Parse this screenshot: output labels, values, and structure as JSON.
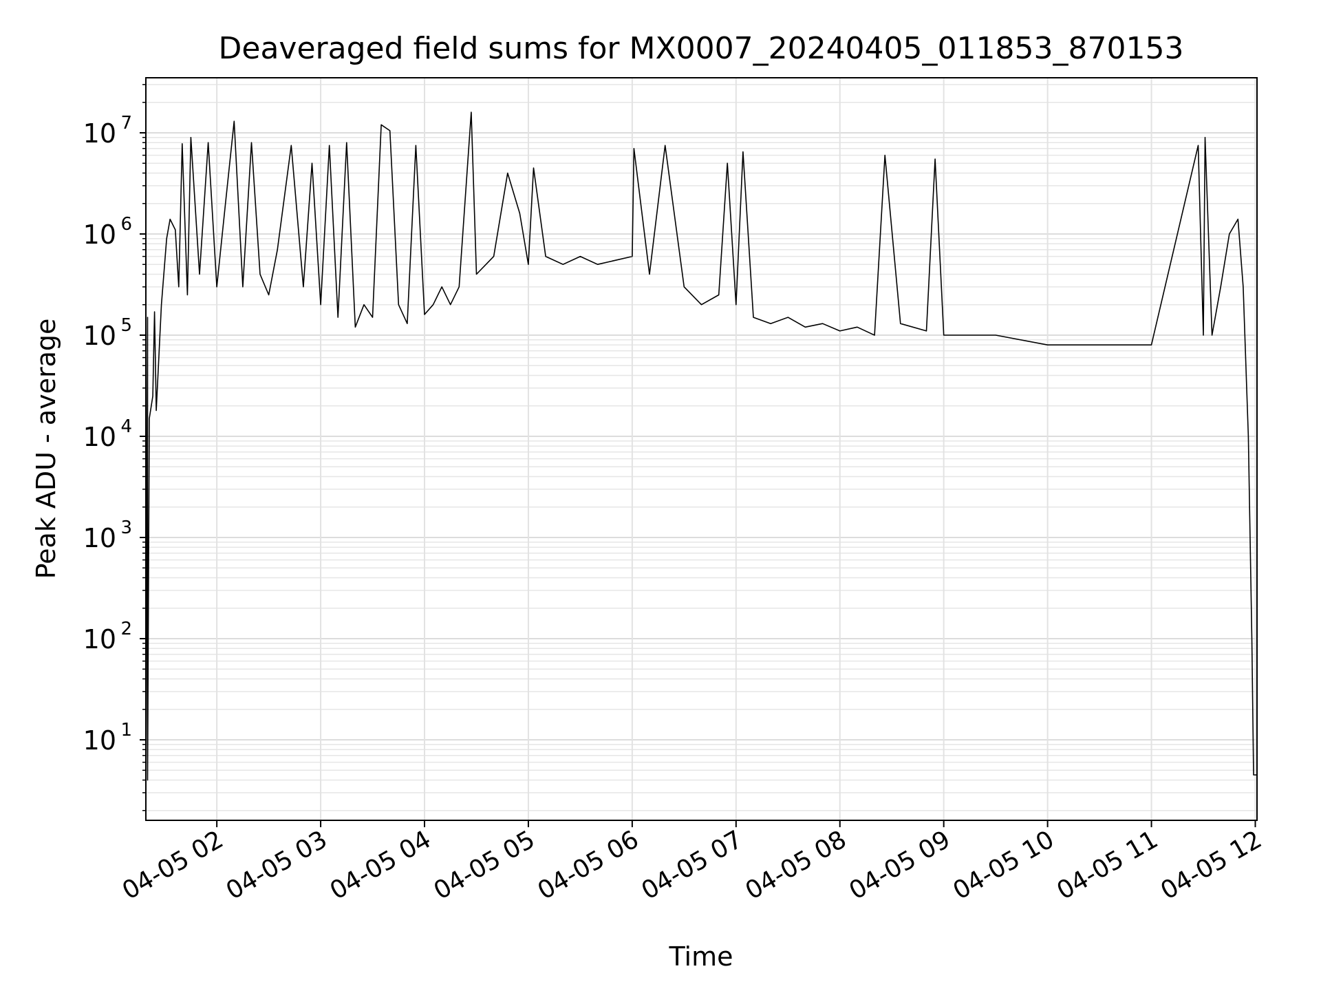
{
  "chart_data": {
    "type": "line",
    "title": "Deaveraged field sums for MX0007_20240405_011853_870153",
    "xlabel": "Time",
    "ylabel": "Peak ADU - average",
    "yscale": "log",
    "xlim": [
      "04-05 01:19",
      "04-05 12:01"
    ],
    "ylim": [
      1.6,
      35000000
    ],
    "grid": true,
    "x_ticks": [
      "04-05 02",
      "04-05 03",
      "04-05 04",
      "04-05 05",
      "04-05 06",
      "04-05 07",
      "04-05 08",
      "04-05 09",
      "04-05 10",
      "04-05 11",
      "04-05 12"
    ],
    "y_ticks": [
      {
        "value": 10,
        "base": "10",
        "exp": "1"
      },
      {
        "value": 100,
        "base": "10",
        "exp": "2"
      },
      {
        "value": 1000,
        "base": "10",
        "exp": "3"
      },
      {
        "value": 10000,
        "base": "10",
        "exp": "4"
      },
      {
        "value": 100000,
        "base": "10",
        "exp": "5"
      },
      {
        "value": 1000000,
        "base": "10",
        "exp": "6"
      },
      {
        "value": 10000000,
        "base": "10",
        "exp": "7"
      }
    ],
    "series": [
      {
        "color": "#000000",
        "points": [
          [
            "04-05 01:19",
            1.8
          ],
          [
            "04-05 01:20",
            150000
          ],
          [
            "04-05 01:20",
            4
          ],
          [
            "04-05 01:21",
            15000
          ],
          [
            "04-05 01:23",
            25000
          ],
          [
            "04-05 01:24",
            170000
          ],
          [
            "04-05 01:25",
            18000
          ],
          [
            "04-05 01:28",
            200000
          ],
          [
            "04-05 01:31",
            900000
          ],
          [
            "04-05 01:33",
            1400000
          ],
          [
            "04-05 01:36",
            1100000
          ],
          [
            "04-05 01:38",
            300000
          ],
          [
            "04-05 01:40",
            7800000
          ],
          [
            "04-05 01:43",
            250000
          ],
          [
            "04-05 01:45",
            9000000
          ],
          [
            "04-05 01:50",
            400000
          ],
          [
            "04-05 01:55",
            8000000
          ],
          [
            "04-05 02:00",
            300000
          ],
          [
            "04-05 02:05",
            2000000
          ],
          [
            "04-05 02:10",
            13000000
          ],
          [
            "04-05 02:15",
            300000
          ],
          [
            "04-05 02:20",
            8000000
          ],
          [
            "04-05 02:25",
            400000
          ],
          [
            "04-05 02:30",
            250000
          ],
          [
            "04-05 02:35",
            700000
          ],
          [
            "04-05 02:43",
            7500000
          ],
          [
            "04-05 02:50",
            300000
          ],
          [
            "04-05 02:55",
            5000000
          ],
          [
            "04-05 03:00",
            200000
          ],
          [
            "04-05 03:05",
            7500000
          ],
          [
            "04-05 03:10",
            150000
          ],
          [
            "04-05 03:15",
            8000000
          ],
          [
            "04-05 03:20",
            120000
          ],
          [
            "04-05 03:25",
            200000
          ],
          [
            "04-05 03:30",
            150000
          ],
          [
            "04-05 03:35",
            12000000
          ],
          [
            "04-05 03:40",
            10500000
          ],
          [
            "04-05 03:45",
            200000
          ],
          [
            "04-05 03:50",
            130000
          ],
          [
            "04-05 03:55",
            7500000
          ],
          [
            "04-05 04:00",
            160000
          ],
          [
            "04-05 04:05",
            200000
          ],
          [
            "04-05 04:10",
            300000
          ],
          [
            "04-05 04:15",
            200000
          ],
          [
            "04-05 04:20",
            300000
          ],
          [
            "04-05 04:27",
            16000000
          ],
          [
            "04-05 04:30",
            400000
          ],
          [
            "04-05 04:40",
            600000
          ],
          [
            "04-05 04:48",
            4000000
          ],
          [
            "04-05 04:55",
            1600000
          ],
          [
            "04-05 05:00",
            500000
          ],
          [
            "04-05 05:03",
            4500000
          ],
          [
            "04-05 05:10",
            600000
          ],
          [
            "04-05 05:20",
            500000
          ],
          [
            "04-05 05:30",
            600000
          ],
          [
            "04-05 05:40",
            500000
          ],
          [
            "04-05 06:00",
            600000
          ],
          [
            "04-05 06:01",
            7000000
          ],
          [
            "04-05 06:10",
            400000
          ],
          [
            "04-05 06:19",
            7500000
          ],
          [
            "04-05 06:30",
            300000
          ],
          [
            "04-05 06:40",
            200000
          ],
          [
            "04-05 06:50",
            250000
          ],
          [
            "04-05 06:55",
            5000000
          ],
          [
            "04-05 07:00",
            200000
          ],
          [
            "04-05 07:04",
            6500000
          ],
          [
            "04-05 07:10",
            150000
          ],
          [
            "04-05 07:20",
            130000
          ],
          [
            "04-05 07:30",
            150000
          ],
          [
            "04-05 07:40",
            120000
          ],
          [
            "04-05 07:50",
            130000
          ],
          [
            "04-05 08:00",
            110000
          ],
          [
            "04-05 08:10",
            120000
          ],
          [
            "04-05 08:20",
            100000
          ],
          [
            "04-05 08:26",
            6000000
          ],
          [
            "04-05 08:35",
            130000
          ],
          [
            "04-05 08:50",
            110000
          ],
          [
            "04-05 08:55",
            5500000
          ],
          [
            "04-05 09:00",
            100000
          ],
          [
            "04-05 09:30",
            100000
          ],
          [
            "04-05 10:00",
            80000
          ],
          [
            "04-05 10:30",
            80000
          ],
          [
            "04-05 11:00",
            80000
          ],
          [
            "04-05 11:27",
            7500000
          ],
          [
            "04-05 11:30",
            100000
          ],
          [
            "04-05 11:31",
            9000000
          ],
          [
            "04-05 11:35",
            100000
          ],
          [
            "04-05 11:40",
            300000
          ],
          [
            "04-05 11:45",
            1000000
          ],
          [
            "04-05 11:50",
            1400000
          ],
          [
            "04-05 11:53",
            300000
          ],
          [
            "04-05 11:56",
            10000
          ],
          [
            "04-05 11:58",
            100
          ],
          [
            "04-05 11:59",
            4.5
          ],
          [
            "04-05 12:01",
            4.5
          ]
        ]
      }
    ]
  }
}
